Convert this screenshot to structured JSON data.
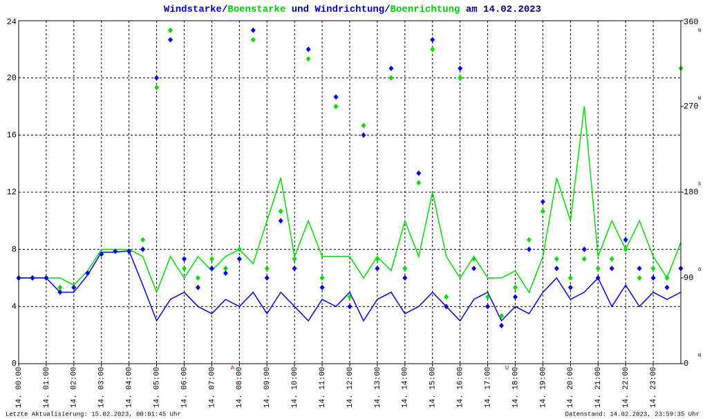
{
  "chart_data": {
    "type": "line",
    "title_parts": [
      {
        "text": "Windstarke",
        "color": "#0000cc"
      },
      {
        "text": "/",
        "color": "#0000cc"
      },
      {
        "text": "Boenstarke",
        "color": "#00cc00"
      },
      {
        "text": " und ",
        "color": "#000080"
      },
      {
        "text": "Windrichtung",
        "color": "#0000cc"
      },
      {
        "text": "/",
        "color": "#0000cc"
      },
      {
        "text": "Boenrichtung",
        "color": "#00cc00"
      },
      {
        "text": " am 14.02.2023",
        "color": "#000080"
      }
    ],
    "footer_left": "Letzte Aktualisierung: 15.02.2023, 00:01:45 Uhr",
    "footer_right": "Datenstand: 14.02.2023, 23:59:35 Uhr",
    "x": [
      0,
      0.5,
      1,
      1.5,
      2,
      2.5,
      3,
      3.5,
      4,
      4.5,
      5,
      5.5,
      6,
      6.5,
      7,
      7.5,
      8,
      8.5,
      9,
      9.5,
      10,
      10.5,
      11,
      11.5,
      12,
      12.5,
      13,
      13.5,
      14,
      14.5,
      15,
      15.5,
      16,
      16.5,
      17,
      17.5,
      18,
      18.5,
      19,
      19.5,
      20,
      20.5,
      21,
      21.5,
      22,
      22.5,
      23,
      23.5,
      24
    ],
    "series": [
      {
        "name": "Boenstarke",
        "kind": "line",
        "color": "#00dd00",
        "values": [
          6,
          6,
          6,
          6,
          5.5,
          6.5,
          8,
          8,
          8,
          7.5,
          5,
          7.5,
          6,
          7.5,
          6.5,
          7.5,
          8,
          7,
          10,
          13,
          7.5,
          10,
          7.5,
          7.5,
          7.5,
          6,
          7.5,
          6.5,
          10,
          7.5,
          12,
          7.5,
          6,
          7.5,
          6,
          6,
          6.5,
          5,
          7.5,
          13,
          10,
          18,
          7.5,
          10,
          8,
          10,
          7.5,
          6,
          8.5
        ]
      },
      {
        "name": "Windstarke",
        "kind": "line",
        "color": "#0000ee",
        "values": [
          6,
          6,
          6,
          5,
          5,
          6.2,
          7.8,
          7.8,
          7.9,
          5.5,
          3,
          4.5,
          5,
          4,
          3.5,
          4.5,
          4,
          5,
          3.5,
          5,
          4,
          3,
          4.5,
          4,
          5,
          3,
          4.5,
          5,
          3.5,
          4,
          5,
          4,
          3,
          4.5,
          5,
          3,
          4,
          3.5,
          5,
          6,
          4.5,
          5,
          6,
          4,
          5.5,
          4,
          5,
          4.5,
          5
        ]
      },
      {
        "name": "Boenrichtung",
        "kind": "scatter",
        "axis": "y2",
        "color": "#00dd00",
        "values": [
          90,
          90,
          90,
          80,
          80,
          95,
          115,
          118,
          118,
          130,
          290,
          350,
          100,
          90,
          110,
          100,
          120,
          340,
          100,
          160,
          110,
          320,
          90,
          270,
          70,
          250,
          110,
          300,
          100,
          190,
          330,
          70,
          300,
          110,
          70,
          50,
          80,
          130,
          160,
          110,
          90,
          110,
          100,
          110,
          120,
          90,
          100,
          90,
          310
        ]
      },
      {
        "name": "Windrichtung",
        "kind": "scatter",
        "axis": "y2",
        "color": "#0000ee",
        "values": [
          90,
          90,
          90,
          75,
          80,
          95,
          115,
          118,
          118,
          120,
          300,
          340,
          110,
          80,
          100,
          95,
          110,
          350,
          90,
          150,
          100,
          330,
          80,
          280,
          60,
          240,
          100,
          310,
          90,
          200,
          340,
          60,
          310,
          100,
          60,
          40,
          70,
          120,
          170,
          100,
          80,
          120,
          90,
          100,
          130,
          100,
          90,
          80,
          100
        ]
      }
    ],
    "xlim": [
      0,
      24
    ],
    "xticks": [
      {
        "value": 0,
        "label": "14. 00:00"
      },
      {
        "value": 1,
        "label": "14. 01:00"
      },
      {
        "value": 2,
        "label": "14. 02:00"
      },
      {
        "value": 3,
        "label": "14. 03:00"
      },
      {
        "value": 4,
        "label": "14. 04:00"
      },
      {
        "value": 5,
        "label": "14. 05:00"
      },
      {
        "value": 6,
        "label": "14. 06:00"
      },
      {
        "value": 7,
        "label": "14. 07:00"
      },
      {
        "value": 8,
        "label": "14. 08:00"
      },
      {
        "value": 9,
        "label": "14. 09:00"
      },
      {
        "value": 10,
        "label": "14. 10:00"
      },
      {
        "value": 11,
        "label": "14. 11:00"
      },
      {
        "value": 12,
        "label": "14. 12:00"
      },
      {
        "value": 13,
        "label": "14. 13:00"
      },
      {
        "value": 14,
        "label": "14. 14:00"
      },
      {
        "value": 15,
        "label": "14. 15:00"
      },
      {
        "value": 16,
        "label": "14. 16:00"
      },
      {
        "value": 17,
        "label": "14. 17:00"
      },
      {
        "value": 18,
        "label": "14. 18:00"
      },
      {
        "value": 19,
        "label": "14. 19:00"
      },
      {
        "value": 20,
        "label": "14. 20:00"
      },
      {
        "value": 21,
        "label": "14. 21:00"
      },
      {
        "value": 22,
        "label": "14. 22:00"
      },
      {
        "value": 23,
        "label": "14. 23:00"
      }
    ],
    "ylim": [
      0,
      24
    ],
    "yticks": [
      0,
      4,
      8,
      12,
      16,
      20,
      24
    ],
    "y2lim": [
      0,
      360
    ],
    "y2ticks": [
      0,
      90,
      180,
      270,
      360
    ],
    "direction_labels": [
      "N",
      "O",
      "S",
      "W",
      "N"
    ],
    "annotations": [
      {
        "x": 7.75,
        "text": "A",
        "color": "#cc0000"
      },
      {
        "x": 17.7,
        "text": "U",
        "color": "#cc0000"
      }
    ],
    "grid": true
  }
}
